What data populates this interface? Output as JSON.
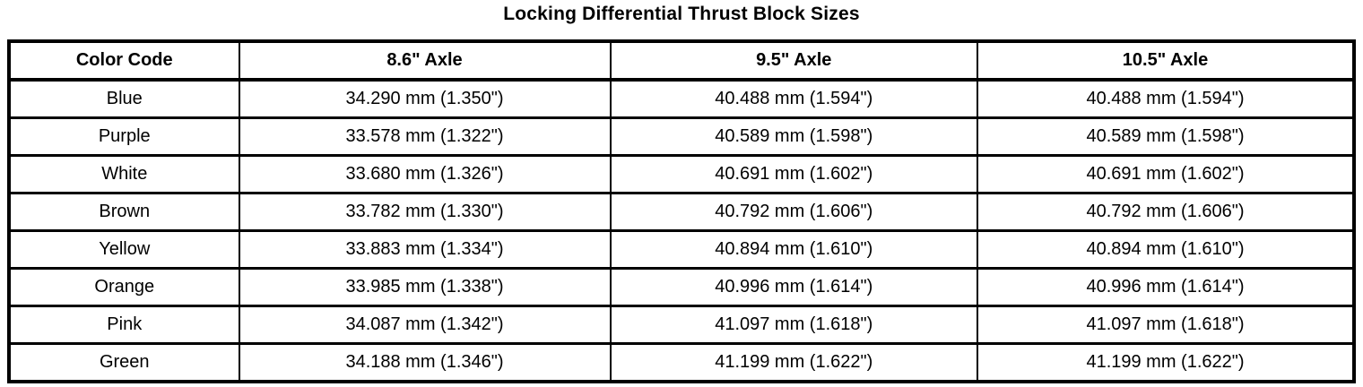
{
  "title": "Locking Differential Thrust Block Sizes",
  "table": {
    "headers": [
      "Color Code",
      "8.6\" Axle",
      "9.5\" Axle",
      "10.5\" Axle"
    ],
    "rows": [
      [
        "Blue",
        "34.290 mm (1.350\")",
        "40.488 mm (1.594\")",
        "40.488 mm (1.594\")"
      ],
      [
        "Purple",
        "33.578 mm (1.322\")",
        "40.589 mm (1.598\")",
        "40.589 mm (1.598\")"
      ],
      [
        "White",
        "33.680 mm (1.326\")",
        "40.691 mm (1.602\")",
        "40.691 mm (1.602\")"
      ],
      [
        "Brown",
        "33.782 mm (1.330\")",
        "40.792 mm (1.606\")",
        "40.792 mm (1.606\")"
      ],
      [
        "Yellow",
        "33.883 mm (1.334\")",
        "40.894 mm (1.610\")",
        "40.894 mm (1.610\")"
      ],
      [
        "Orange",
        "33.985 mm (1.338\")",
        "40.996 mm (1.614\")",
        "40.996 mm (1.614\")"
      ],
      [
        "Pink",
        "34.087 mm (1.342\")",
        "41.097 mm (1.618\")",
        "41.097 mm (1.618\")"
      ],
      [
        "Green",
        "34.188 mm (1.346\")",
        "41.199 mm (1.622\")",
        "41.199 mm (1.622\")"
      ]
    ]
  },
  "colors": {
    "text": "#000000",
    "border": "#000000",
    "background": "#ffffff"
  }
}
